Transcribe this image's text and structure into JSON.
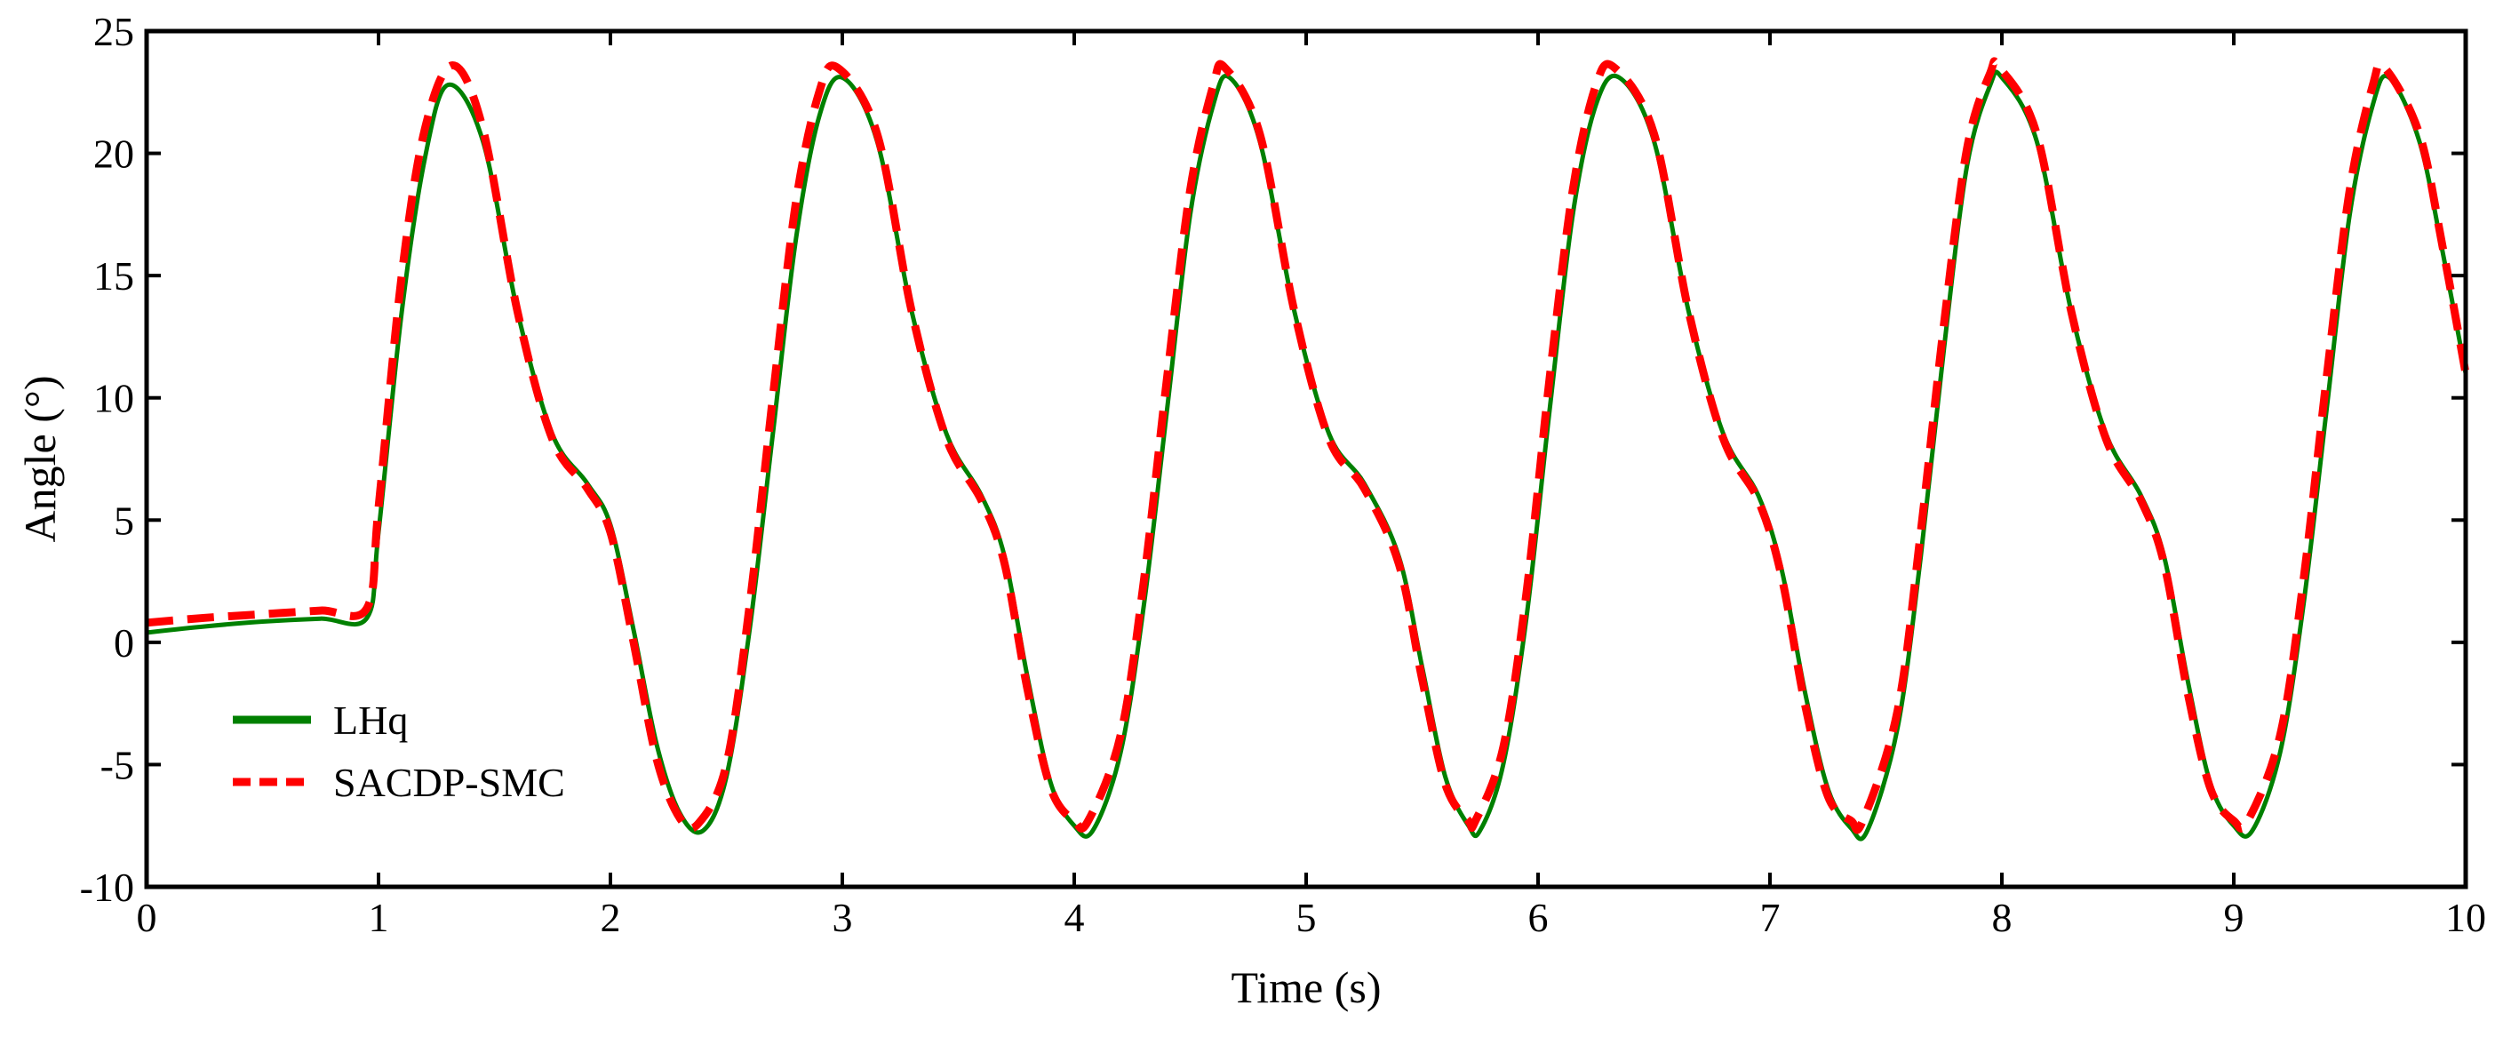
{
  "chart_data": {
    "type": "line",
    "title": "",
    "xlabel": "Time (s)",
    "ylabel": "Angle (°)",
    "xlim": [
      0,
      10
    ],
    "ylim": [
      -10,
      25
    ],
    "xticks": [
      0,
      1,
      2,
      3,
      4,
      5,
      6,
      7,
      8,
      9,
      10
    ],
    "yticks": [
      -10,
      -5,
      0,
      5,
      10,
      15,
      20,
      25
    ],
    "xtick_labels": [
      "0",
      "1",
      "2",
      "3",
      "4",
      "5",
      "6",
      "7",
      "8",
      "9",
      "10"
    ],
    "ytick_labels": [
      "-10",
      "-5",
      "0",
      "5",
      "10",
      "15",
      "20",
      "25"
    ],
    "grid": false,
    "legend_position": "bottom-left",
    "series": [
      {
        "name": "LHq",
        "color": "#008000",
        "style": "solid",
        "x": [
          0,
          0.25,
          0.5,
          0.75,
          0.95,
          1.0,
          1.1,
          1.2,
          1.3,
          1.45,
          1.6,
          1.75,
          1.9,
          2.0,
          2.1,
          2.2,
          2.3,
          2.4,
          2.5,
          2.6,
          2.7,
          2.8,
          2.9,
          3.0,
          3.15,
          3.3,
          3.45,
          3.6,
          3.7,
          3.8,
          3.9,
          4.0,
          4.08,
          4.2,
          4.3,
          4.4,
          4.5,
          4.6,
          4.67,
          4.8,
          4.95,
          5.1,
          5.25,
          5.4,
          5.5,
          5.6,
          5.7,
          5.75,
          5.85,
          5.95,
          6.05,
          6.15,
          6.25,
          6.35,
          6.5,
          6.65,
          6.8,
          6.95,
          7.05,
          7.15,
          7.25,
          7.35,
          7.42,
          7.55,
          7.65,
          7.75,
          7.85,
          7.95,
          8.0,
          8.15,
          8.3,
          8.45,
          8.6,
          8.7,
          8.8,
          8.9,
          9.0,
          9.08,
          9.2,
          9.3,
          9.4,
          9.5,
          9.6,
          9.67,
          9.8,
          9.9,
          10.0
        ],
        "y": [
          0.4,
          0.65,
          0.85,
          0.97,
          1.0,
          4.5,
          13.5,
          19.8,
          22.8,
          20.5,
          13.5,
          8.5,
          6.5,
          4.8,
          0.5,
          -4.2,
          -7.0,
          -7.7,
          -5.5,
          0.5,
          8.5,
          16.5,
          21.5,
          23.1,
          20.5,
          13.5,
          8.5,
          6.0,
          3.5,
          -1.5,
          -5.8,
          -7.5,
          -7.7,
          -4.5,
          1.5,
          9.5,
          17.5,
          22.0,
          23.1,
          20.5,
          13.5,
          8.5,
          6.5,
          3.5,
          -1.0,
          -5.5,
          -7.5,
          -7.7,
          -5.0,
          1.0,
          9.5,
          17.5,
          22.0,
          23.1,
          20.5,
          13.5,
          8.5,
          6.0,
          3.0,
          -2.0,
          -6.0,
          -7.6,
          -7.7,
          -3.5,
          3.5,
          12.0,
          19.5,
          22.8,
          23.1,
          20.5,
          13.5,
          8.5,
          6.0,
          3.5,
          -1.5,
          -5.8,
          -7.5,
          -7.7,
          -4.5,
          1.5,
          9.5,
          17.5,
          22.0,
          23.1,
          20.5,
          16.0,
          11.0
        ]
      },
      {
        "name": "SACDP-SMC",
        "color": "#ff0000",
        "style": "dashed",
        "x": [
          0,
          0.25,
          0.5,
          0.75,
          0.95,
          1.0,
          1.1,
          1.2,
          1.32,
          1.45,
          1.6,
          1.75,
          1.9,
          2.0,
          2.1,
          2.2,
          2.3,
          2.38,
          2.5,
          2.6,
          2.7,
          2.8,
          2.9,
          2.98,
          3.15,
          3.3,
          3.45,
          3.6,
          3.7,
          3.8,
          3.9,
          4.0,
          4.06,
          4.2,
          4.3,
          4.4,
          4.5,
          4.6,
          4.65,
          4.8,
          4.95,
          5.1,
          5.25,
          5.4,
          5.5,
          5.6,
          5.7,
          5.73,
          5.85,
          5.95,
          6.05,
          6.15,
          6.25,
          6.33,
          6.5,
          6.65,
          6.8,
          6.95,
          7.05,
          7.15,
          7.25,
          7.35,
          7.4,
          7.55,
          7.65,
          7.75,
          7.85,
          7.95,
          7.99,
          8.15,
          8.3,
          8.45,
          8.6,
          8.7,
          8.8,
          8.9,
          9.0,
          9.06,
          9.2,
          9.3,
          9.4,
          9.5,
          9.6,
          9.65,
          9.8,
          9.9,
          10.0
        ],
        "y": [
          0.8,
          1.0,
          1.15,
          1.3,
          1.4,
          5.5,
          15.0,
          21.0,
          23.6,
          21.0,
          13.5,
          8.3,
          6.3,
          4.5,
          0.0,
          -4.8,
          -7.2,
          -7.4,
          -5.0,
          1.5,
          10.0,
          18.0,
          22.5,
          23.5,
          20.8,
          13.5,
          8.3,
          5.8,
          3.2,
          -2.0,
          -6.0,
          -7.3,
          -7.3,
          -3.8,
          2.5,
          10.8,
          18.5,
          22.8,
          23.5,
          20.8,
          13.5,
          8.3,
          6.3,
          3.2,
          -1.5,
          -5.8,
          -7.3,
          -7.3,
          -4.3,
          2.0,
          10.8,
          18.5,
          22.8,
          23.5,
          20.8,
          13.5,
          8.3,
          5.8,
          2.7,
          -2.5,
          -6.3,
          -7.3,
          -7.3,
          -2.8,
          4.5,
          13.0,
          20.2,
          23.3,
          23.5,
          20.8,
          13.5,
          8.3,
          5.8,
          3.2,
          -2.0,
          -6.0,
          -7.3,
          -7.3,
          -3.8,
          2.5,
          10.8,
          18.5,
          22.8,
          23.5,
          20.8,
          16.2,
          11.0
        ]
      }
    ]
  }
}
